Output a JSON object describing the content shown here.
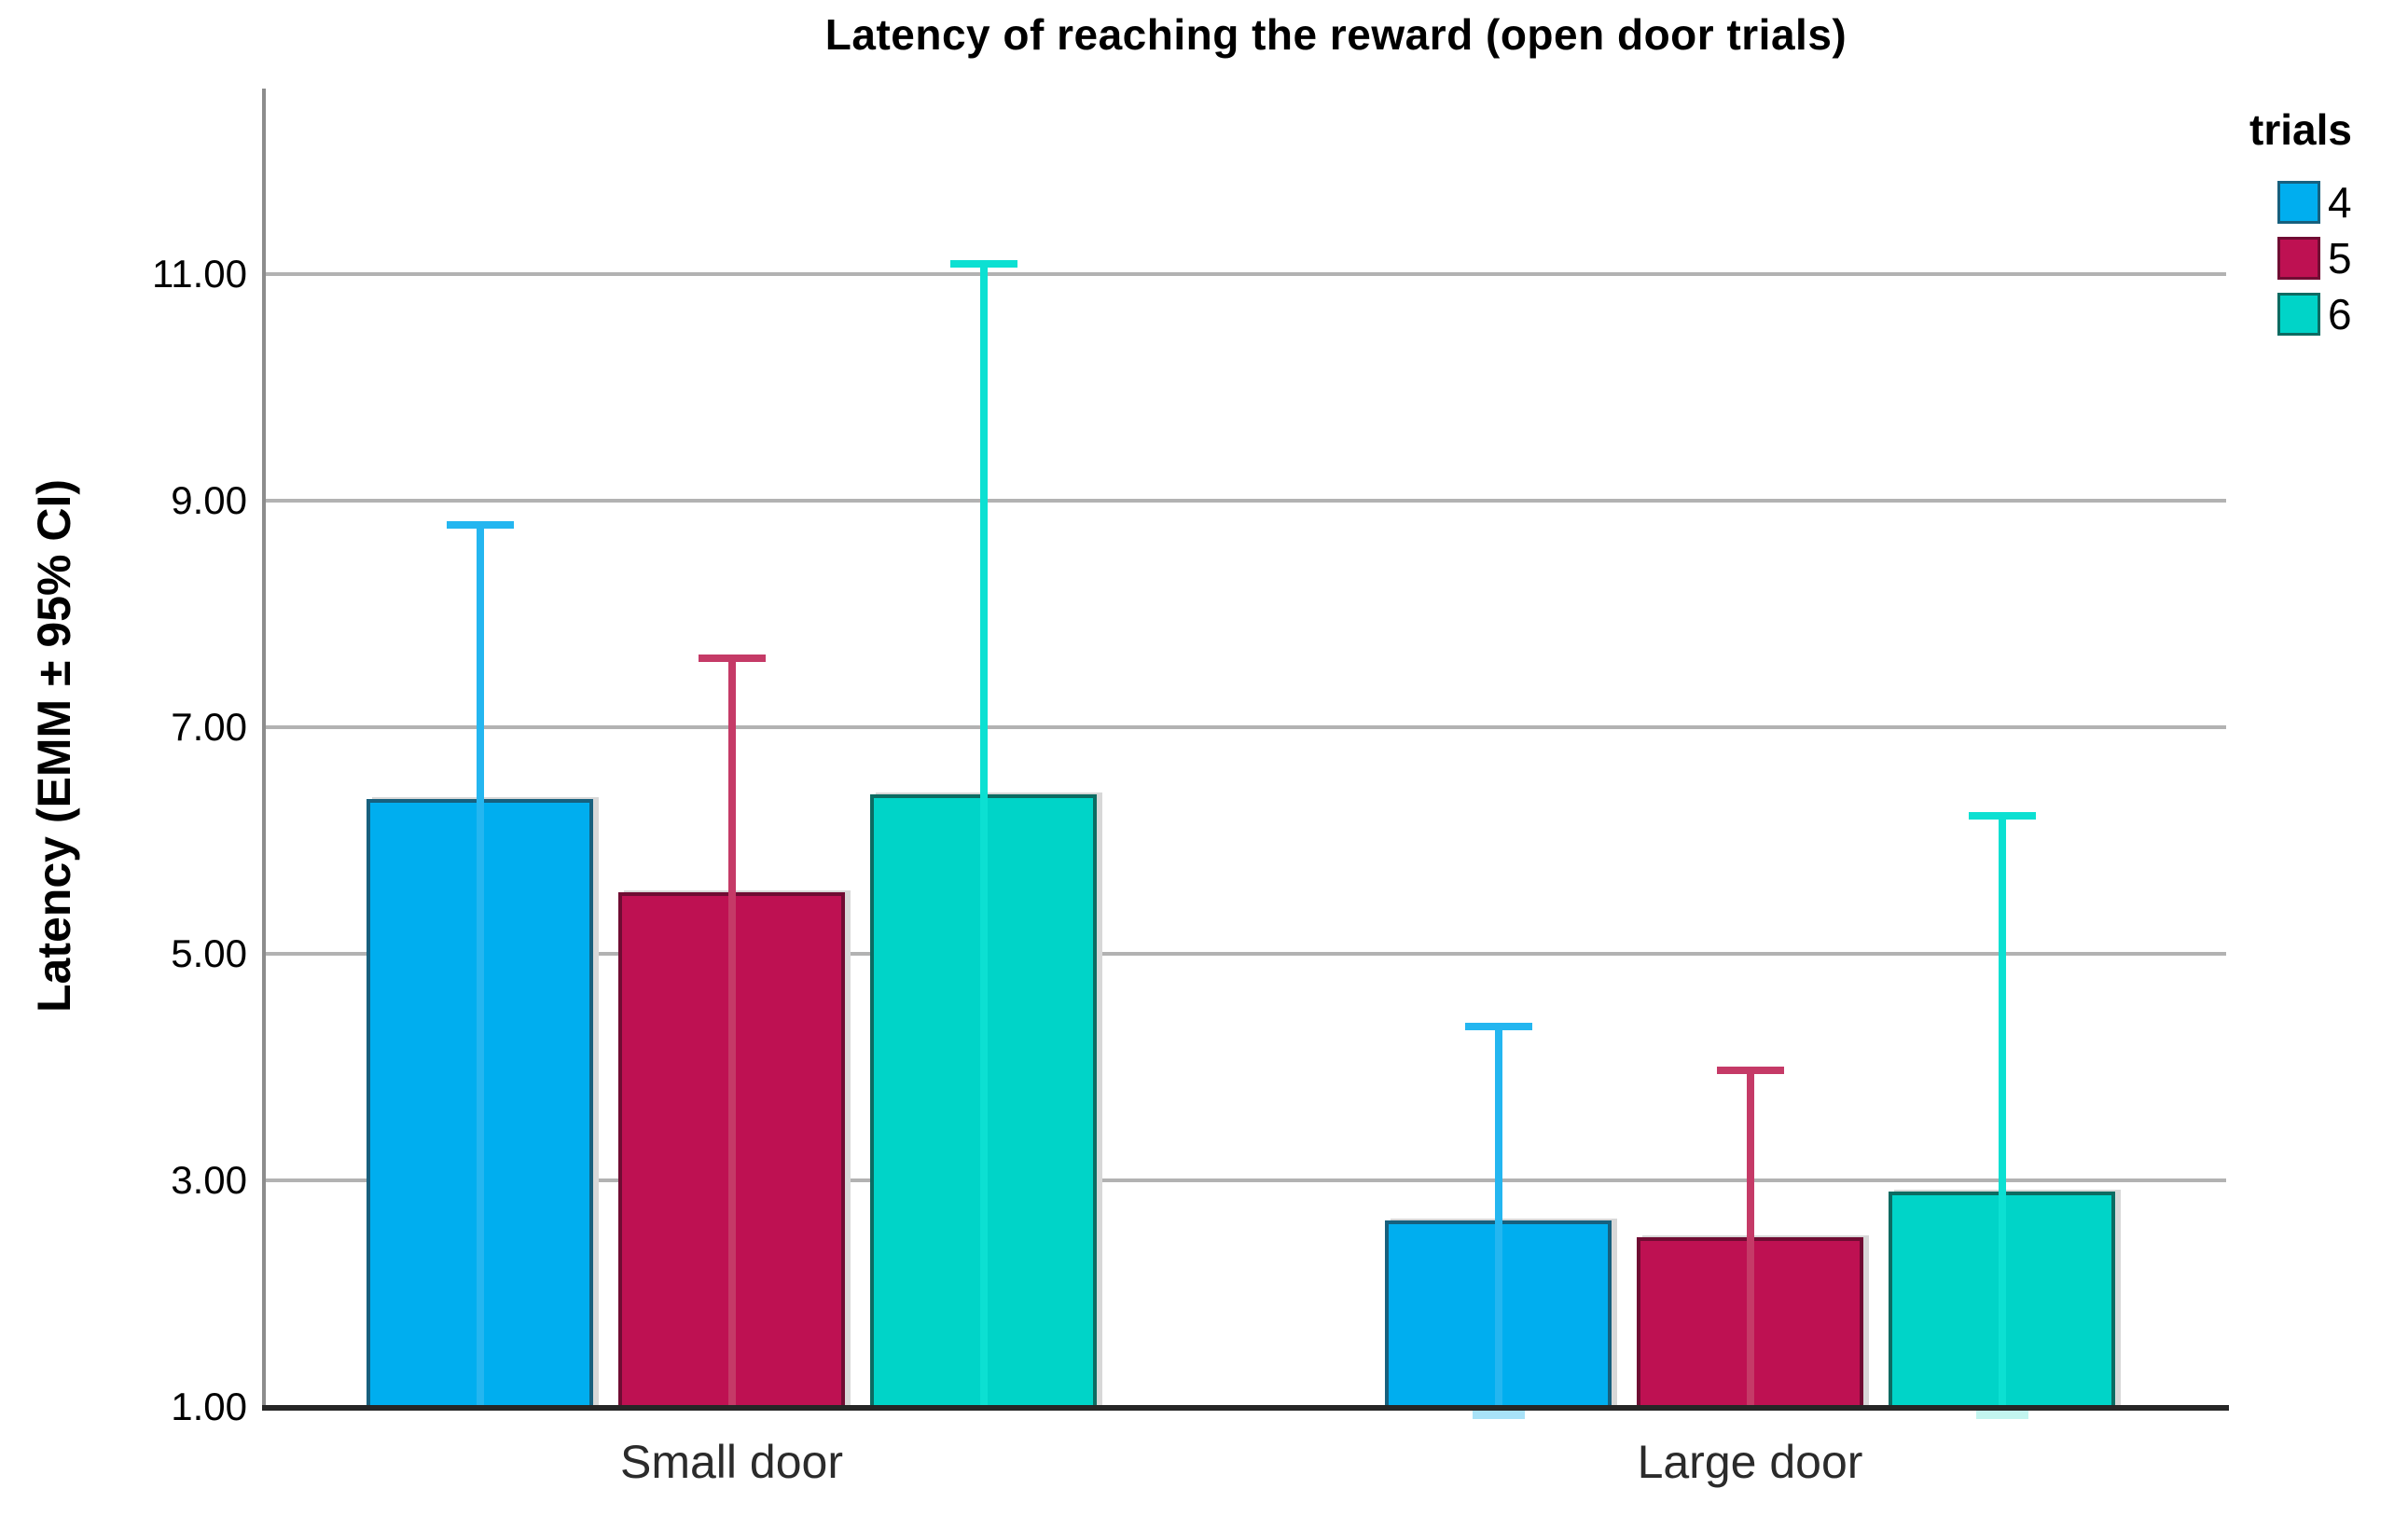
{
  "figure": {
    "background": "#ffffff",
    "gridline_color": "#b2b2b2",
    "x_axis_color": "#262626",
    "y_axis_color": "#8c8c8c",
    "text_color": "#000000"
  },
  "chart_data": {
    "type": "bar",
    "title": "Latency of reaching the reward (open door trials)",
    "ylabel": "Latency (EMM ± 95% CI)",
    "xlabel": "",
    "categories": [
      "Small door",
      "Large door"
    ],
    "legend_title": "trials",
    "legend_position": "top-right",
    "grid": true,
    "ylim": [
      1.0,
      12.6
    ],
    "y_ticks": [
      1,
      3,
      5,
      7,
      9,
      11
    ],
    "y_tick_labels": [
      "1.00",
      "3.00",
      "5.00",
      "7.00",
      "9.00",
      "11.00"
    ],
    "error_bars": "upper 95% CI whiskers shown; lower whiskers clipped at axis minimum",
    "series": [
      {
        "name": "4",
        "fill": "#00aeef",
        "border": "#17607e",
        "whisker": "#24b6f0",
        "nub": "#a8e2f8",
        "means": [
          6.37,
          2.65
        ],
        "upper_ci": [
          8.79,
          4.36
        ],
        "lower_below_axis": [
          false,
          true
        ]
      },
      {
        "name": "5",
        "fill": "#be1152",
        "border": "#700c33",
        "whisker": "#c53a67",
        "nub": "#edc3d1",
        "means": [
          5.54,
          2.5
        ],
        "upper_ci": [
          7.61,
          3.97
        ],
        "lower_below_axis": [
          false,
          false
        ]
      },
      {
        "name": "6",
        "fill": "#00d4c8",
        "border": "#0c6b62",
        "whisker": "#0ce0d2",
        "nub": "#c2f5ef",
        "means": [
          6.41,
          2.9
        ],
        "upper_ci": [
          11.09,
          6.22
        ],
        "lower_below_axis": [
          false,
          true
        ]
      }
    ]
  }
}
